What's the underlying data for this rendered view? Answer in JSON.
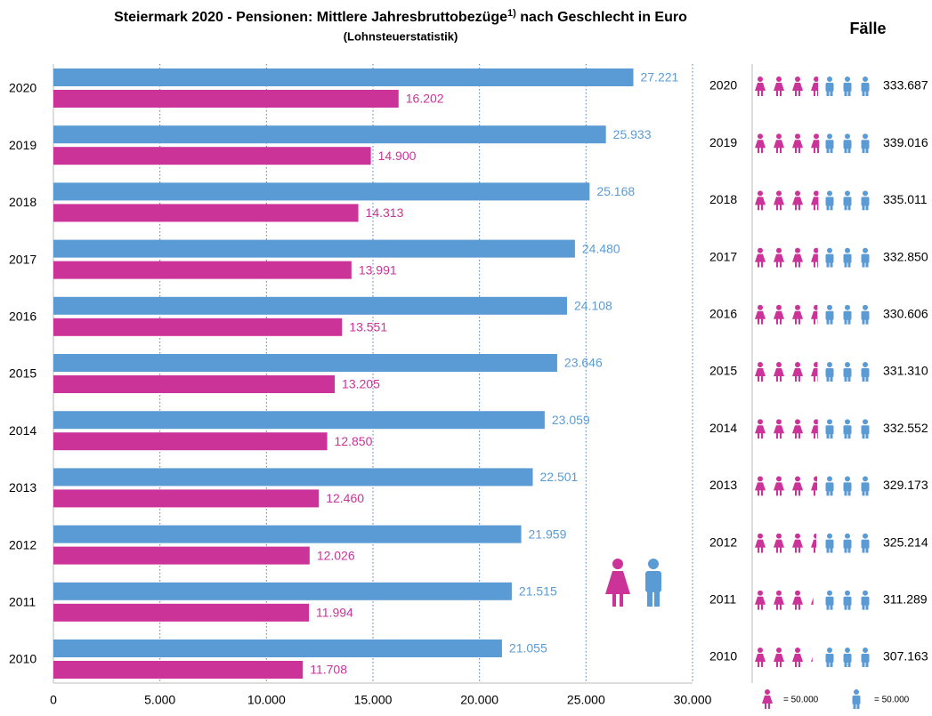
{
  "chart_data": {
    "type": "bar",
    "orientation": "horizontal",
    "title": "Steiermark 2020 - Pensionen: Mittlere Jahresbruttobezüge",
    "title_superscript": "1)",
    "title_suffix": " nach Geschlecht in Euro",
    "subtitle": "(Lohnsteuerstatistik)",
    "categories": [
      "2020",
      "2019",
      "2018",
      "2017",
      "2016",
      "2015",
      "2014",
      "2013",
      "2012",
      "2011",
      "2010"
    ],
    "series": [
      {
        "color": "#5b9bd5",
        "values": [
          27221,
          25933,
          25168,
          24480,
          24108,
          23646,
          23059,
          22501,
          21959,
          21515,
          21055
        ],
        "value_labels": [
          "27.221",
          "25.933",
          "25.168",
          "24.480",
          "24.108",
          "23.646",
          "23.059",
          "22.501",
          "21.959",
          "21.515",
          "21.055"
        ]
      },
      {
        "color": "#cc3399",
        "values": [
          16202,
          14900,
          14313,
          13991,
          13551,
          13205,
          12850,
          12460,
          12026,
          11994,
          11708
        ],
        "value_labels": [
          "16.202",
          "14.900",
          "14.313",
          "13.991",
          "13.551",
          "13.205",
          "12.850",
          "12.460",
          "12.026",
          "11.994",
          "11.708"
        ]
      }
    ],
    "xlim": [
      0,
      30000
    ],
    "xticks": [
      0,
      {
        "value": 5000,
        "label": "5.000"
      },
      {
        "value": 10000,
        "label": "10.000"
      },
      {
        "value": 15000,
        "label": "15.000"
      },
      {
        "value": 20000,
        "label": "20.000"
      },
      {
        "value": 25000,
        "label": "25.000"
      },
      {
        "value": 30000,
        "label": "30.000"
      }
    ],
    "grid": true,
    "cases": {
      "title": "Fälle",
      "values": [
        333687,
        339016,
        335011,
        332850,
        330606,
        331310,
        332552,
        329173,
        325214,
        311289,
        307163
      ],
      "value_labels": [
        "333.687",
        "339.016",
        "335.011",
        "332.850",
        "330.606",
        "331.310",
        "332.552",
        "329.173",
        "325.214",
        "311.289",
        "307.163"
      ],
      "icon_unit": 50000,
      "icon_unit_label": "= 50.000"
    }
  }
}
